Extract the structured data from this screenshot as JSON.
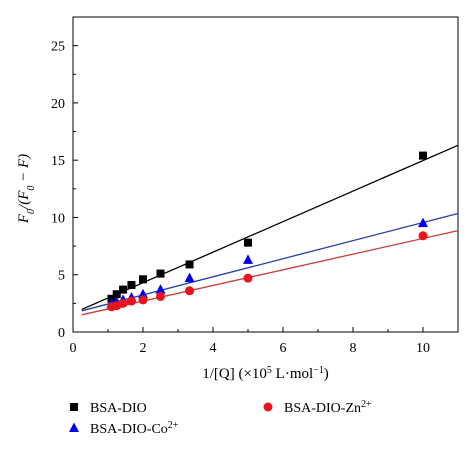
{
  "chart_data": {
    "type": "scatter",
    "xlabel_parts": [
      "1/[Q] (×10",
      "5",
      " L·mol",
      "−1",
      ")"
    ],
    "ylabel_parts": [
      "F",
      "0",
      "/(F",
      "0",
      " − F)"
    ],
    "xlim": [
      0,
      11
    ],
    "ylim": [
      0,
      27.5
    ],
    "xticks": [
      0,
      2,
      4,
      6,
      8,
      10
    ],
    "yticks": [
      0,
      5,
      10,
      15,
      20,
      25
    ],
    "legend_position": "bottom",
    "series": [
      {
        "name": "BSA-DIO",
        "legend_parts": [
          "BSA-DIO",
          ""
        ],
        "marker": "square",
        "color": "#000000",
        "line_color": "#000000",
        "x": [
          1.1,
          1.25,
          1.43,
          1.67,
          2.0,
          2.5,
          3.33,
          5.0,
          10.0
        ],
        "y": [
          2.9,
          3.3,
          3.7,
          4.1,
          4.6,
          5.1,
          5.9,
          7.8,
          15.4
        ],
        "fit": {
          "x": [
            0.25,
            11.0
          ],
          "y": [
            1.97,
            16.3
          ]
        }
      },
      {
        "name": "BSA-DIO-Co2+",
        "legend_parts": [
          "BSA-DIO-Co",
          "2+"
        ],
        "marker": "triangle",
        "color": "#0000ee",
        "line_color": "#2a3aa8",
        "x": [
          1.1,
          1.25,
          1.43,
          1.67,
          2.0,
          2.5,
          3.33,
          5.0,
          10.0
        ],
        "y": [
          2.5,
          2.6,
          2.8,
          3.0,
          3.3,
          3.7,
          4.7,
          6.3,
          9.5
        ],
        "fit": {
          "x": [
            0.25,
            11.0
          ],
          "y": [
            1.85,
            10.35
          ]
        }
      },
      {
        "name": "BSA-DIO-Zn2+",
        "legend_parts": [
          "BSA-DIO-Zn",
          "2+"
        ],
        "marker": "circle",
        "color": "#e8141b",
        "line_color": "#c83c3c",
        "x": [
          1.1,
          1.25,
          1.43,
          1.67,
          2.0,
          2.5,
          3.33,
          5.0,
          10.0
        ],
        "y": [
          2.2,
          2.3,
          2.5,
          2.7,
          2.8,
          3.1,
          3.6,
          4.7,
          8.4
        ],
        "fit": {
          "x": [
            0.25,
            11.0
          ],
          "y": [
            1.5,
            8.85
          ]
        }
      }
    ]
  }
}
